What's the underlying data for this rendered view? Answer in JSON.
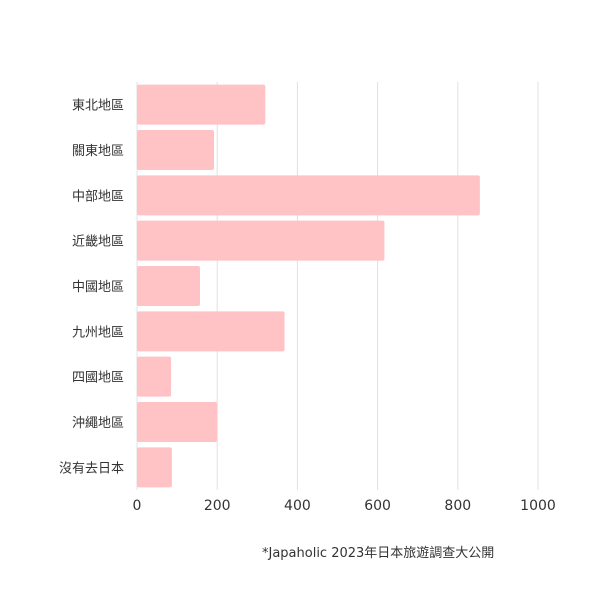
{
  "chart_data": {
    "type": "bar",
    "orientation": "horizontal",
    "categories": [
      "東北地區",
      "關東地區",
      "中部地區",
      "近畿地區",
      "中國地區",
      "九州地區",
      "四國地區",
      "沖繩地區",
      "沒有去日本"
    ],
    "values": [
      320,
      192,
      855,
      617,
      157,
      368,
      85,
      200,
      87
    ],
    "xlim": [
      0,
      1000
    ],
    "xticks": [
      "0",
      "200",
      "400",
      "600",
      "800",
      "1000"
    ],
    "grid": true,
    "bar_color": "#ffc2c5",
    "title": "",
    "xlabel": "",
    "ylabel": ""
  },
  "footnote": "*Japaholic 2023年日本旅遊調查大公開"
}
